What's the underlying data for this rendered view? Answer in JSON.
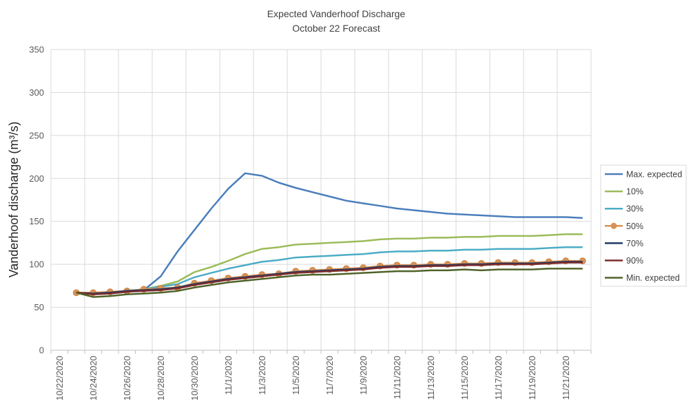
{
  "chart_data": {
    "type": "line",
    "title": "Expected Vanderhoof Discharge",
    "subtitle": "October 22 Forecast",
    "xlabel": "",
    "ylabel": "Vanderhoof discharge (m³/s)",
    "ylim": [
      0,
      350
    ],
    "yticks": [
      0,
      50,
      100,
      150,
      200,
      250,
      300,
      350
    ],
    "grid": true,
    "legend_position": "right",
    "x_tick_labels": [
      "10/22/2020",
      "10/24/2020",
      "10/26/2020",
      "10/28/2020",
      "10/30/2020",
      "11/1/2020",
      "11/3/2020",
      "11/5/2020",
      "11/7/2020",
      "11/9/2020",
      "11/11/2020",
      "11/13/2020",
      "11/15/2020",
      "11/17/2020",
      "11/19/2020",
      "11/21/2020"
    ],
    "x": [
      "10/23/2020",
      "10/24/2020",
      "10/25/2020",
      "10/26/2020",
      "10/27/2020",
      "10/28/2020",
      "10/29/2020",
      "10/30/2020",
      "10/31/2020",
      "11/1/2020",
      "11/2/2020",
      "11/3/2020",
      "11/4/2020",
      "11/5/2020",
      "11/6/2020",
      "11/7/2020",
      "11/8/2020",
      "11/9/2020",
      "11/10/2020",
      "11/11/2020",
      "11/12/2020",
      "11/13/2020",
      "11/14/2020",
      "11/15/2020",
      "11/16/2020",
      "11/17/2020",
      "11/18/2020",
      "11/19/2020",
      "11/20/2020",
      "11/21/2020",
      "11/22/2020"
    ],
    "series": [
      {
        "name": "Max. expected",
        "color": "#4a7ebb",
        "marker": false,
        "values": [
          67,
          66,
          67,
          68,
          70,
          86,
          115,
          140,
          165,
          188,
          206,
          203,
          195,
          189,
          184,
          179,
          174,
          171,
          168,
          165,
          163,
          161,
          159,
          158,
          157,
          156,
          155,
          155,
          155,
          155,
          154
        ]
      },
      {
        "name": "10%",
        "color": "#9bbb59",
        "marker": false,
        "values": [
          67,
          66,
          67,
          69,
          71,
          75,
          80,
          91,
          97,
          104,
          112,
          118,
          120,
          123,
          124,
          125,
          126,
          127,
          129,
          130,
          130,
          131,
          131,
          132,
          132,
          133,
          133,
          133,
          134,
          135,
          135
        ]
      },
      {
        "name": "30%",
        "color": "#4bacc6",
        "marker": false,
        "values": [
          67,
          66,
          67,
          69,
          71,
          74,
          77,
          85,
          90,
          95,
          99,
          103,
          105,
          108,
          109,
          110,
          111,
          112,
          114,
          115,
          115,
          116,
          116,
          117,
          117,
          118,
          118,
          118,
          119,
          120,
          120
        ]
      },
      {
        "name": "50%",
        "color": "#d99255",
        "marker": true,
        "values": [
          67,
          67,
          68,
          69,
          71,
          72,
          73,
          78,
          81,
          84,
          86,
          88,
          89,
          92,
          93,
          94,
          95,
          96,
          98,
          99,
          99,
          100,
          100,
          101,
          101,
          102,
          102,
          102,
          103,
          104,
          104
        ]
      },
      {
        "name": "70%",
        "color": "#1f3864",
        "marker": false,
        "values": [
          67,
          66,
          67,
          69,
          70,
          71,
          73,
          77,
          80,
          83,
          85,
          87,
          89,
          91,
          92,
          93,
          94,
          95,
          97,
          98,
          98,
          99,
          99,
          100,
          100,
          101,
          101,
          101,
          102,
          103,
          103
        ]
      },
      {
        "name": "90%",
        "color": "#7b2c2c",
        "marker": false,
        "values": [
          67,
          65,
          66,
          68,
          69,
          70,
          72,
          76,
          79,
          82,
          84,
          86,
          88,
          90,
          91,
          92,
          93,
          94,
          96,
          97,
          97,
          98,
          98,
          99,
          99,
          100,
          100,
          100,
          101,
          102,
          102
        ]
      },
      {
        "name": "Min. expected",
        "color": "#4f6228",
        "marker": false,
        "values": [
          67,
          62,
          63,
          65,
          66,
          67,
          69,
          73,
          76,
          79,
          81,
          83,
          85,
          87,
          88,
          88,
          89,
          90,
          91,
          92,
          92,
          93,
          93,
          94,
          93,
          94,
          94,
          94,
          95,
          95,
          95
        ]
      }
    ]
  }
}
